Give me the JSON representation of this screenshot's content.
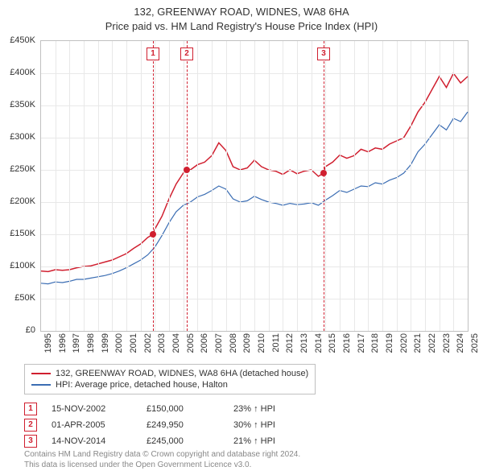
{
  "title": {
    "line1": "132, GREENWAY ROAD, WIDNES, WA8 6HA",
    "line2": "Price paid vs. HM Land Registry's House Price Index (HPI)",
    "fontsize": 13,
    "color": "#333333"
  },
  "chart": {
    "type": "line",
    "background_color": "#ffffff",
    "grid_color": "#e8e8e8",
    "border_color": "#c0c0c0",
    "x": {
      "min": 1995,
      "max": 2025,
      "ticks": [
        1995,
        1996,
        1997,
        1998,
        1999,
        2000,
        2001,
        2002,
        2003,
        2004,
        2005,
        2006,
        2007,
        2008,
        2009,
        2010,
        2011,
        2012,
        2013,
        2014,
        2015,
        2016,
        2017,
        2018,
        2019,
        2020,
        2021,
        2022,
        2023,
        2024,
        2025
      ],
      "label_fontsize": 11
    },
    "y": {
      "min": 0,
      "max": 450000,
      "ticks": [
        0,
        50000,
        100000,
        150000,
        200000,
        250000,
        300000,
        350000,
        400000,
        450000
      ],
      "tick_labels": [
        "£0",
        "£50K",
        "£100K",
        "£150K",
        "£200K",
        "£250K",
        "£300K",
        "£350K",
        "£400K",
        "£450K"
      ],
      "label_fontsize": 11
    },
    "series": [
      {
        "name": "property",
        "label": "132, GREENWAY ROAD, WIDNES, WA8 6HA (detached house)",
        "color": "#d01f2f",
        "line_width": 1.5,
        "data": [
          [
            1995.0,
            93000
          ],
          [
            1995.5,
            92000
          ],
          [
            1996.0,
            95000
          ],
          [
            1996.5,
            94000
          ],
          [
            1997.0,
            95000
          ],
          [
            1997.5,
            98000
          ],
          [
            1998.0,
            100000
          ],
          [
            1998.5,
            101000
          ],
          [
            1999.0,
            104000
          ],
          [
            1999.5,
            107000
          ],
          [
            2000.0,
            110000
          ],
          [
            2000.5,
            115000
          ],
          [
            2001.0,
            120000
          ],
          [
            2001.5,
            128000
          ],
          [
            2002.0,
            135000
          ],
          [
            2002.5,
            145000
          ],
          [
            2002.87,
            150000
          ],
          [
            2003.0,
            158000
          ],
          [
            2003.5,
            178000
          ],
          [
            2004.0,
            205000
          ],
          [
            2004.5,
            228000
          ],
          [
            2005.0,
            245000
          ],
          [
            2005.25,
            249950
          ],
          [
            2005.5,
            250000
          ],
          [
            2006.0,
            258000
          ],
          [
            2006.5,
            262000
          ],
          [
            2007.0,
            272000
          ],
          [
            2007.5,
            292000
          ],
          [
            2008.0,
            280000
          ],
          [
            2008.5,
            255000
          ],
          [
            2009.0,
            250000
          ],
          [
            2009.5,
            253000
          ],
          [
            2010.0,
            265000
          ],
          [
            2010.5,
            255000
          ],
          [
            2011.0,
            250000
          ],
          [
            2011.5,
            248000
          ],
          [
            2012.0,
            243000
          ],
          [
            2012.5,
            250000
          ],
          [
            2013.0,
            244000
          ],
          [
            2013.5,
            248000
          ],
          [
            2014.0,
            250000
          ],
          [
            2014.5,
            240000
          ],
          [
            2014.87,
            245000
          ],
          [
            2015.0,
            255000
          ],
          [
            2015.5,
            262000
          ],
          [
            2016.0,
            273000
          ],
          [
            2016.5,
            268000
          ],
          [
            2017.0,
            272000
          ],
          [
            2017.5,
            282000
          ],
          [
            2018.0,
            278000
          ],
          [
            2018.5,
            284000
          ],
          [
            2019.0,
            282000
          ],
          [
            2019.5,
            290000
          ],
          [
            2020.0,
            295000
          ],
          [
            2020.5,
            300000
          ],
          [
            2021.0,
            318000
          ],
          [
            2021.5,
            340000
          ],
          [
            2022.0,
            355000
          ],
          [
            2022.5,
            375000
          ],
          [
            2023.0,
            395000
          ],
          [
            2023.5,
            378000
          ],
          [
            2024.0,
            400000
          ],
          [
            2024.5,
            385000
          ],
          [
            2025.0,
            395000
          ]
        ]
      },
      {
        "name": "hpi",
        "label": "HPI: Average price, detached house, Halton",
        "color": "#3b6db3",
        "line_width": 1.2,
        "data": [
          [
            1995.0,
            74000
          ],
          [
            1995.5,
            73000
          ],
          [
            1996.0,
            76000
          ],
          [
            1996.5,
            75000
          ],
          [
            1997.0,
            77000
          ],
          [
            1997.5,
            80000
          ],
          [
            1998.0,
            80000
          ],
          [
            1998.5,
            82000
          ],
          [
            1999.0,
            84000
          ],
          [
            1999.5,
            86000
          ],
          [
            2000.0,
            89000
          ],
          [
            2000.5,
            93000
          ],
          [
            2001.0,
            98000
          ],
          [
            2001.5,
            104000
          ],
          [
            2002.0,
            110000
          ],
          [
            2002.5,
            118000
          ],
          [
            2003.0,
            130000
          ],
          [
            2003.5,
            148000
          ],
          [
            2004.0,
            168000
          ],
          [
            2004.5,
            185000
          ],
          [
            2005.0,
            195000
          ],
          [
            2005.5,
            200000
          ],
          [
            2006.0,
            208000
          ],
          [
            2006.5,
            212000
          ],
          [
            2007.0,
            218000
          ],
          [
            2007.5,
            225000
          ],
          [
            2008.0,
            220000
          ],
          [
            2008.5,
            205000
          ],
          [
            2009.0,
            200000
          ],
          [
            2009.5,
            202000
          ],
          [
            2010.0,
            209000
          ],
          [
            2010.5,
            204000
          ],
          [
            2011.0,
            200000
          ],
          [
            2011.5,
            198000
          ],
          [
            2012.0,
            195000
          ],
          [
            2012.5,
            198000
          ],
          [
            2013.0,
            196000
          ],
          [
            2013.5,
            197000
          ],
          [
            2014.0,
            199000
          ],
          [
            2014.5,
            195000
          ],
          [
            2015.0,
            203000
          ],
          [
            2015.5,
            210000
          ],
          [
            2016.0,
            218000
          ],
          [
            2016.5,
            215000
          ],
          [
            2017.0,
            220000
          ],
          [
            2017.5,
            225000
          ],
          [
            2018.0,
            224000
          ],
          [
            2018.5,
            230000
          ],
          [
            2019.0,
            228000
          ],
          [
            2019.5,
            234000
          ],
          [
            2020.0,
            238000
          ],
          [
            2020.5,
            245000
          ],
          [
            2021.0,
            258000
          ],
          [
            2021.5,
            278000
          ],
          [
            2022.0,
            290000
          ],
          [
            2022.5,
            305000
          ],
          [
            2023.0,
            320000
          ],
          [
            2023.5,
            312000
          ],
          [
            2024.0,
            330000
          ],
          [
            2024.5,
            325000
          ],
          [
            2025.0,
            340000
          ]
        ]
      }
    ],
    "markers": [
      {
        "n": "1",
        "x": 2002.87,
        "y": 150000
      },
      {
        "n": "2",
        "x": 2005.25,
        "y": 249950
      },
      {
        "n": "3",
        "x": 2014.87,
        "y": 245000
      }
    ],
    "marker_color": "#d01f2f",
    "marker_fill": "#d01f2f"
  },
  "legend": {
    "items": [
      {
        "color": "#d01f2f",
        "label": "132, GREENWAY ROAD, WIDNES, WA8 6HA (detached house)"
      },
      {
        "color": "#3b6db3",
        "label": "HPI: Average price, detached house, Halton"
      }
    ],
    "fontsize": 11
  },
  "sales": [
    {
      "n": "1",
      "date": "15-NOV-2002",
      "price": "£150,000",
      "diff": "23% ↑ HPI"
    },
    {
      "n": "2",
      "date": "01-APR-2005",
      "price": "£249,950",
      "diff": "30% ↑ HPI"
    },
    {
      "n": "3",
      "date": "14-NOV-2014",
      "price": "£245,000",
      "diff": "21% ↑ HPI"
    }
  ],
  "attribution": {
    "line1": "Contains HM Land Registry data © Crown copyright and database right 2024.",
    "line2": "This data is licensed under the Open Government Licence v3.0.",
    "color": "#888888"
  }
}
